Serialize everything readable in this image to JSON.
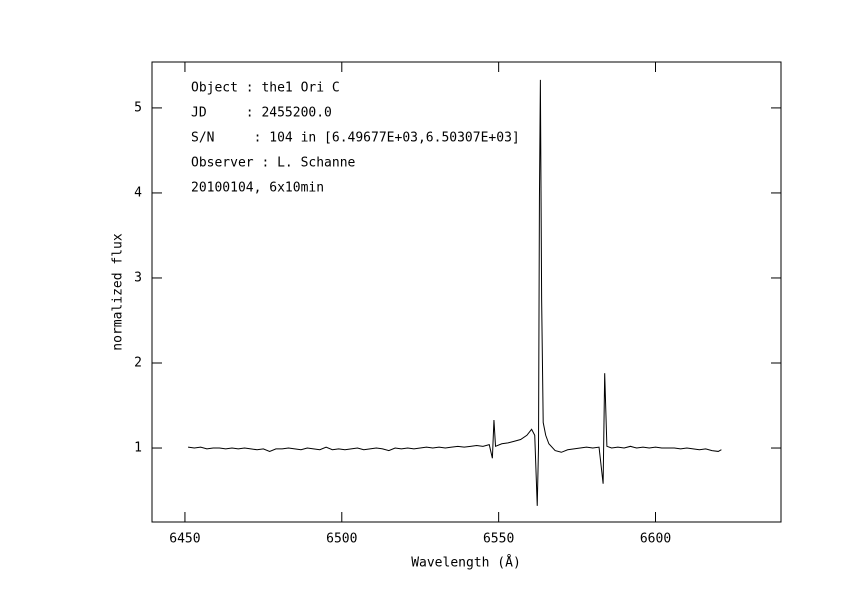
{
  "chart_data": {
    "type": "line",
    "x_label": "Wavelength (Å)",
    "y_label": "normalized flux",
    "annotations": [
      "Object : the1 Ori C",
      "JD     : 2455200.0",
      "S/N     : 104 in [6.49677E+03,6.50307E+03]",
      "Observer : L. Schanne",
      "20100104, 6x10min"
    ],
    "x": [
      6451,
      6453,
      6455,
      6457,
      6459,
      6461,
      6463,
      6465,
      6467,
      6469,
      6471,
      6473,
      6475,
      6477,
      6479,
      6481,
      6483,
      6485,
      6487,
      6489,
      6491,
      6493,
      6495,
      6497,
      6499,
      6501,
      6503,
      6505,
      6507,
      6509,
      6511,
      6513,
      6515,
      6517,
      6519,
      6521,
      6523,
      6525,
      6527,
      6529,
      6531,
      6533,
      6535,
      6537,
      6539,
      6541,
      6543,
      6545,
      6547,
      6548,
      6548.5,
      6549,
      6551,
      6553,
      6555,
      6557,
      6559,
      6560.5,
      6561.5,
      6562.3,
      6562.7,
      6563.0,
      6563.3,
      6563.7,
      6564.2,
      6565,
      6566,
      6568,
      6570,
      6572,
      6574,
      6576,
      6578,
      6580,
      6582,
      6583.3,
      6583.8,
      6584.5,
      6586,
      6588,
      6590,
      6592,
      6594,
      6596,
      6598,
      6600,
      6602,
      6604,
      6606,
      6608,
      6610,
      6612,
      6614,
      6616,
      6618,
      6620,
      6621
    ],
    "values": [
      1.01,
      1.0,
      1.01,
      0.99,
      1.0,
      1.0,
      0.99,
      1.0,
      0.99,
      1.0,
      0.99,
      0.98,
      0.99,
      0.96,
      0.99,
      0.99,
      1.0,
      0.99,
      0.98,
      1.0,
      0.99,
      0.98,
      1.01,
      0.98,
      0.99,
      0.98,
      0.99,
      1.0,
      0.98,
      0.99,
      1.0,
      0.99,
      0.97,
      1.0,
      0.99,
      1.0,
      0.99,
      1.0,
      1.01,
      1.0,
      1.01,
      1.0,
      1.01,
      1.02,
      1.01,
      1.02,
      1.03,
      1.02,
      1.04,
      0.88,
      1.33,
      1.02,
      1.05,
      1.06,
      1.08,
      1.1,
      1.15,
      1.22,
      1.15,
      0.32,
      1.0,
      3.95,
      5.33,
      2.75,
      1.3,
      1.15,
      1.05,
      0.97,
      0.95,
      0.98,
      0.99,
      1.0,
      1.01,
      1.0,
      1.01,
      0.58,
      1.88,
      1.02,
      1.0,
      1.01,
      1.0,
      1.02,
      1.0,
      1.01,
      1.0,
      1.01,
      1.0,
      1.0,
      1.0,
      0.99,
      1.0,
      0.99,
      0.98,
      0.99,
      0.97,
      0.96,
      0.98
    ],
    "color": "#000000",
    "xlim": [
      6439.5,
      6640
    ],
    "ylim": [
      0.13,
      5.54
    ],
    "xticks": [
      6450,
      6500,
      6550,
      6600
    ],
    "yticks": [
      1,
      2,
      3,
      4,
      5
    ]
  }
}
